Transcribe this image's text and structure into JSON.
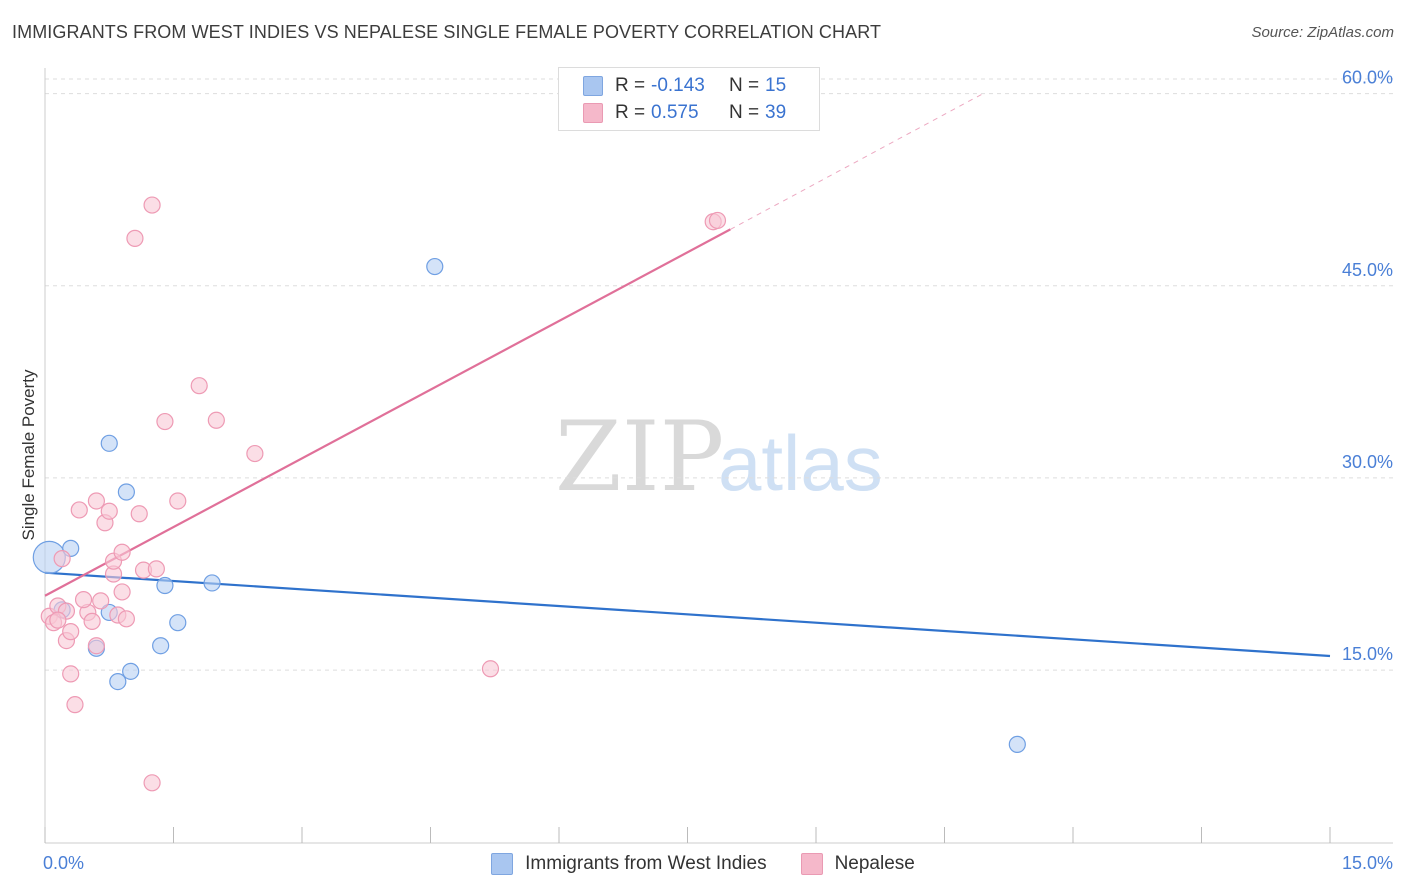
{
  "title": "IMMIGRANTS FROM WEST INDIES VS NEPALESE SINGLE FEMALE POVERTY CORRELATION CHART",
  "source": "Source: ZipAtlas.com",
  "watermark": {
    "zip": "ZIP",
    "atlas": "atlas"
  },
  "legend": {
    "rows": [
      {
        "r_label": "R =",
        "r_value": "-0.143",
        "n_label": "N =",
        "n_value": "15",
        "color": "#a9c6f0"
      },
      {
        "r_label": "R =",
        "r_value": "0.575",
        "n_label": "N =",
        "n_value": "39",
        "color": "#f5b8ca"
      }
    ]
  },
  "bottom_legend": [
    {
      "label": "Immigrants from West Indies",
      "color": "#a9c6f0"
    },
    {
      "label": "Nepalese",
      "color": "#f5b8ca"
    }
  ],
  "chart_data": {
    "type": "scatter",
    "title": "IMMIGRANTS FROM WEST INDIES VS NEPALESE SINGLE FEMALE POVERTY CORRELATION CHART",
    "xlabel": "",
    "ylabel": "Single Female Poverty",
    "xlim": [
      0,
      15
    ],
    "ylim": [
      1.5,
      62
    ],
    "x_tick_labels": [
      {
        "value": 0,
        "label": "0.0%"
      },
      {
        "value": 15,
        "label": "15.0%"
      }
    ],
    "x_minor_ticks": [
      0,
      1.5,
      3,
      4.5,
      6,
      7.5,
      9,
      10.5,
      12,
      13.5,
      15
    ],
    "y_ticks": [
      {
        "value": 15,
        "label": "15.0%"
      },
      {
        "value": 30,
        "label": "30.0%"
      },
      {
        "value": 45,
        "label": "45.0%"
      },
      {
        "value": 60,
        "label": "60.0%"
      }
    ],
    "grid": true,
    "series": [
      {
        "name": "Immigrants from West Indies",
        "color": "#6f9fe3",
        "fill": "#b8d0f3",
        "line_color": "#2f72cc",
        "trend": {
          "x0": 0,
          "y0": 22.6,
          "x1": 15,
          "y1": 16.1
        },
        "points": [
          {
            "x": 0.05,
            "y": 23.8,
            "size": "large"
          },
          {
            "x": 0.3,
            "y": 24.5
          },
          {
            "x": 0.2,
            "y": 19.7
          },
          {
            "x": 0.75,
            "y": 32.7
          },
          {
            "x": 0.95,
            "y": 28.9
          },
          {
            "x": 0.75,
            "y": 19.5
          },
          {
            "x": 0.6,
            "y": 16.7
          },
          {
            "x": 0.85,
            "y": 14.1
          },
          {
            "x": 1.0,
            "y": 14.9
          },
          {
            "x": 1.35,
            "y": 16.9
          },
          {
            "x": 1.4,
            "y": 21.6
          },
          {
            "x": 1.55,
            "y": 18.7
          },
          {
            "x": 1.95,
            "y": 21.8
          },
          {
            "x": 4.55,
            "y": 46.5
          },
          {
            "x": 11.35,
            "y": 9.2
          }
        ]
      },
      {
        "name": "Nepalese",
        "color": "#ee9ab4",
        "fill": "#f8c8d6",
        "line_color": "#e07099",
        "trend": {
          "x0": 0,
          "y0": 20.8,
          "x1": 8.0,
          "y1": 49.4
        },
        "trend_dashed": {
          "x0": 8.0,
          "y0": 49.4,
          "x1": 10.95,
          "y1": 60.0
        },
        "points": [
          {
            "x": 0.05,
            "y": 19.2
          },
          {
            "x": 0.1,
            "y": 18.7
          },
          {
            "x": 0.15,
            "y": 20.0
          },
          {
            "x": 0.2,
            "y": 23.7
          },
          {
            "x": 0.25,
            "y": 17.3
          },
          {
            "x": 0.3,
            "y": 14.7
          },
          {
            "x": 0.3,
            "y": 18.0
          },
          {
            "x": 0.35,
            "y": 12.3
          },
          {
            "x": 0.4,
            "y": 27.5
          },
          {
            "x": 0.5,
            "y": 19.5
          },
          {
            "x": 0.55,
            "y": 18.8
          },
          {
            "x": 0.6,
            "y": 16.9
          },
          {
            "x": 0.6,
            "y": 28.2
          },
          {
            "x": 0.65,
            "y": 20.4
          },
          {
            "x": 0.7,
            "y": 26.5
          },
          {
            "x": 0.75,
            "y": 27.4
          },
          {
            "x": 0.8,
            "y": 22.5
          },
          {
            "x": 0.8,
            "y": 23.5
          },
          {
            "x": 0.85,
            "y": 19.3
          },
          {
            "x": 0.9,
            "y": 24.2
          },
          {
            "x": 0.9,
            "y": 21.1
          },
          {
            "x": 0.95,
            "y": 19.0
          },
          {
            "x": 1.05,
            "y": 48.7
          },
          {
            "x": 1.1,
            "y": 27.2
          },
          {
            "x": 1.15,
            "y": 22.8
          },
          {
            "x": 1.25,
            "y": 51.3
          },
          {
            "x": 1.3,
            "y": 22.9
          },
          {
            "x": 1.4,
            "y": 34.4
          },
          {
            "x": 1.55,
            "y": 28.2
          },
          {
            "x": 1.8,
            "y": 37.2
          },
          {
            "x": 2.0,
            "y": 34.5
          },
          {
            "x": 2.45,
            "y": 31.9
          },
          {
            "x": 5.2,
            "y": 15.1
          },
          {
            "x": 7.8,
            "y": 50.0
          },
          {
            "x": 7.85,
            "y": 50.1
          },
          {
            "x": 1.25,
            "y": 6.2
          },
          {
            "x": 0.25,
            "y": 19.6
          },
          {
            "x": 0.15,
            "y": 18.9
          },
          {
            "x": 0.45,
            "y": 20.5
          }
        ]
      }
    ]
  }
}
